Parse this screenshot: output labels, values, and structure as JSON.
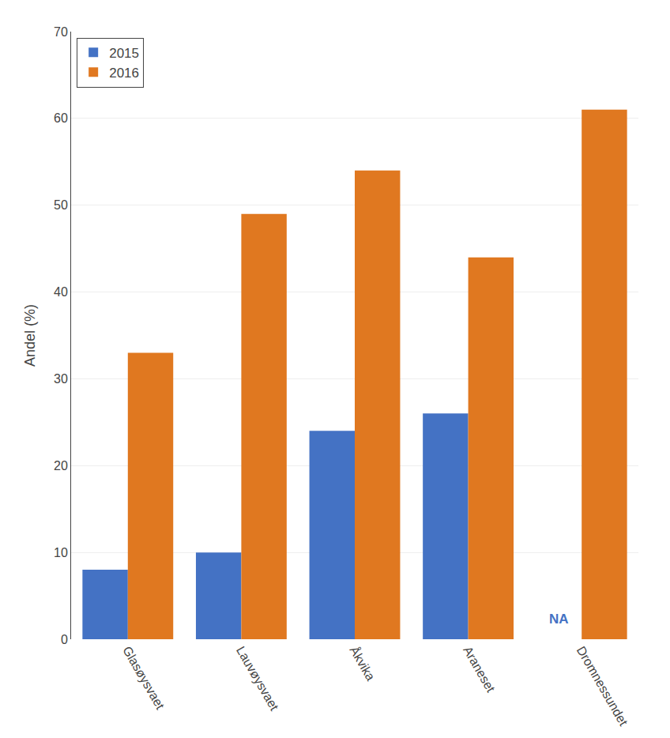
{
  "chart_data": {
    "type": "bar",
    "categories": [
      "Glasøysvaet",
      "Lauvøysvaet",
      "Åkvika",
      "Araneset",
      "Dromnessundet"
    ],
    "series": [
      {
        "name": "2015",
        "color": "#4472C4",
        "values": [
          8,
          10,
          24,
          26,
          null
        ]
      },
      {
        "name": "2016",
        "color": "#E07820",
        "values": [
          33,
          49,
          54,
          44,
          61
        ]
      }
    ],
    "ylabel": "Andel (%)",
    "ylim": [
      0,
      70
    ],
    "yticks": [
      0,
      10,
      20,
      30,
      40,
      50,
      60,
      70
    ],
    "grid": true,
    "legend": "upper left",
    "annotations": [
      {
        "text": "NA",
        "category": "Dromnessundet",
        "series": "2015",
        "color": "#4472C4"
      }
    ]
  }
}
